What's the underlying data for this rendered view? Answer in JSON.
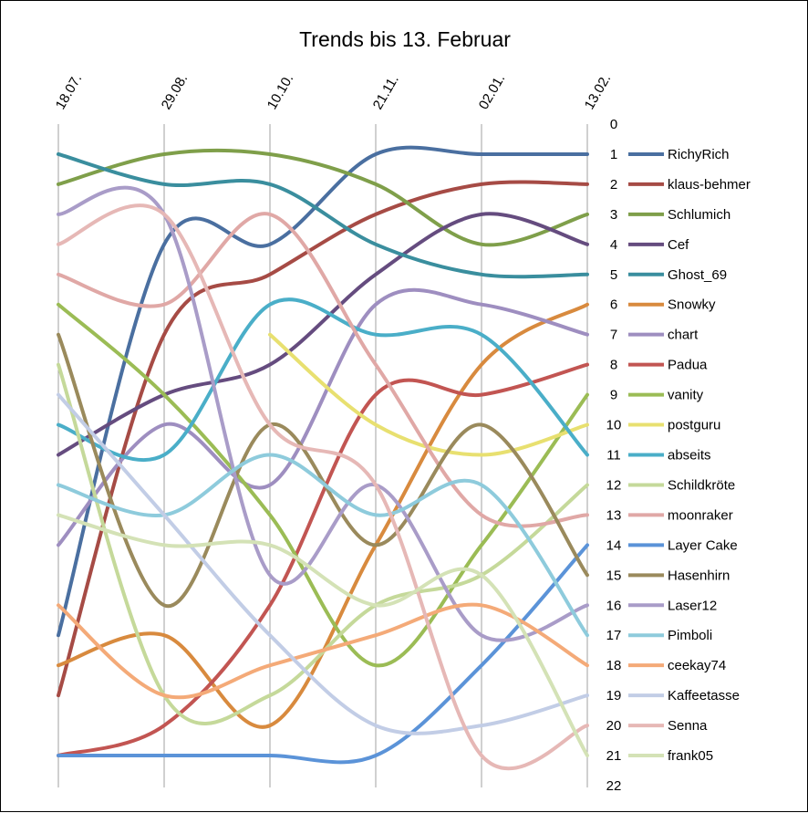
{
  "chart_data": {
    "type": "line",
    "title": "Trends bis 13. Februar",
    "xlabel": "",
    "ylabel": "",
    "categories": [
      "18.07.",
      "29.08.",
      "10.10.",
      "21.11.",
      "02.01.",
      "13.02."
    ],
    "ylim": [
      0,
      22
    ],
    "y_inverted": true,
    "y_ticks": [
      0,
      1,
      2,
      3,
      4,
      5,
      6,
      7,
      8,
      9,
      10,
      11,
      12,
      13,
      14,
      15,
      16,
      17,
      18,
      19,
      20,
      21,
      22
    ],
    "grid": "vertical",
    "legend_position": "right",
    "series": [
      {
        "name": "RichyRich",
        "color": "#4a6fa0",
        "values": [
          17,
          4,
          4,
          1,
          1,
          1
        ]
      },
      {
        "name": "klaus-behmer",
        "color": "#a64b45",
        "values": [
          19,
          7,
          5,
          3,
          2,
          2
        ]
      },
      {
        "name": "Schlumich",
        "color": "#7f9f4a",
        "values": [
          2,
          1,
          1,
          2,
          4,
          3
        ]
      },
      {
        "name": "Cef",
        "color": "#654c7f",
        "values": [
          11,
          9,
          8,
          5,
          3,
          4
        ]
      },
      {
        "name": "Ghost_69",
        "color": "#3a8e9e",
        "values": [
          1,
          2,
          2,
          4,
          5,
          5
        ]
      },
      {
        "name": "Snowky",
        "color": "#d88a3e",
        "values": [
          18,
          17,
          20,
          14,
          8,
          6
        ]
      },
      {
        "name": "chart",
        "color": "#9e8ec0",
        "values": [
          14,
          10,
          12,
          6,
          6,
          7
        ]
      },
      {
        "name": "Padua",
        "color": "#c25552",
        "values": [
          21,
          20,
          16,
          9,
          9,
          8
        ]
      },
      {
        "name": "vanity",
        "color": "#9bbc55",
        "values": [
          6,
          9,
          13,
          18,
          14,
          9
        ]
      },
      {
        "name": "postguru",
        "color": "#e8e070",
        "values": [
          null,
          null,
          7,
          10,
          11,
          10
        ]
      },
      {
        "name": "abseits",
        "color": "#4aaec8",
        "values": [
          10,
          11,
          6,
          7,
          7,
          11
        ]
      },
      {
        "name": "Schildkröte",
        "color": "#c5d99a",
        "values": [
          8,
          19,
          19,
          16,
          15,
          12
        ]
      },
      {
        "name": "moonraker",
        "color": "#e0a8a6",
        "values": [
          5,
          6,
          3,
          8,
          13,
          13
        ]
      },
      {
        "name": "Layer Cake",
        "color": "#5b93d8",
        "values": [
          21,
          21,
          21,
          21,
          18,
          14
        ]
      },
      {
        "name": "Hasenhirn",
        "color": "#9a8a5c",
        "values": [
          7,
          16,
          10,
          14,
          10,
          15
        ]
      },
      {
        "name": "Laser12",
        "color": "#a99cc8",
        "values": [
          3,
          3,
          15,
          12,
          17,
          16
        ]
      },
      {
        "name": "Pimboli",
        "color": "#8ecbdc",
        "values": [
          12,
          13,
          11,
          13,
          12,
          17
        ]
      },
      {
        "name": "ceekay74",
        "color": "#f4aa78",
        "values": [
          16,
          19,
          18,
          17,
          16,
          18
        ]
      },
      {
        "name": "Kaffeetasse",
        "color": "#c2cde6",
        "values": [
          9,
          13,
          17,
          20,
          20,
          19
        ]
      },
      {
        "name": "Senna",
        "color": "#e6b8b6",
        "values": [
          4,
          3,
          10,
          12,
          21,
          20
        ]
      },
      {
        "name": "frank05",
        "color": "#d4e2b6",
        "values": [
          13,
          14,
          14,
          16,
          15,
          21
        ]
      }
    ]
  }
}
